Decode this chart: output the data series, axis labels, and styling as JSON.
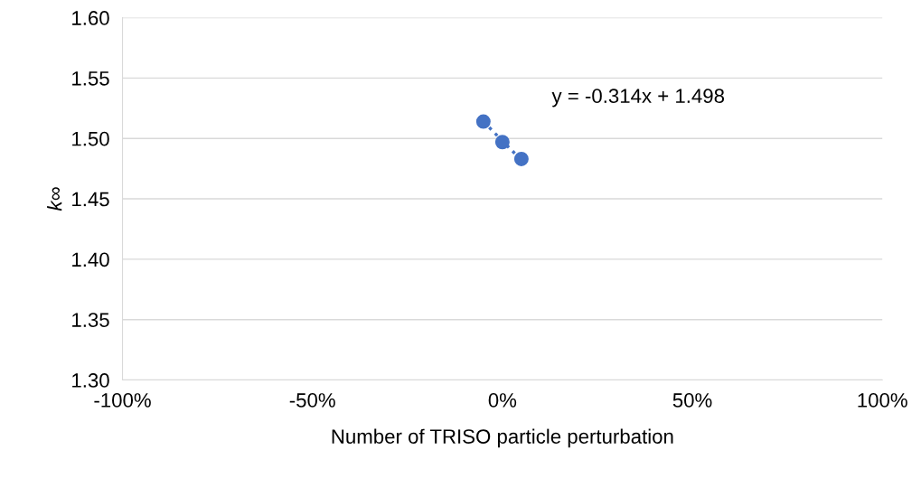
{
  "chart_data": {
    "type": "scatter",
    "xlabel": "Number of TRISO particle perturbation",
    "ylabel": "k∞",
    "xlim": [
      -1,
      1
    ],
    "xticks": [
      {
        "value": -1,
        "label": "-100%"
      },
      {
        "value": -0.5,
        "label": "-50%"
      },
      {
        "value": 0,
        "label": "0%"
      },
      {
        "value": 0.5,
        "label": "50%"
      },
      {
        "value": 1,
        "label": "100%"
      }
    ],
    "ylim": [
      1.3,
      1.6
    ],
    "yticks": [
      {
        "value": 1.3,
        "label": "1.30"
      },
      {
        "value": 1.35,
        "label": "1.35"
      },
      {
        "value": 1.4,
        "label": "1.40"
      },
      {
        "value": 1.45,
        "label": "1.45"
      },
      {
        "value": 1.5,
        "label": "1.50"
      },
      {
        "value": 1.55,
        "label": "1.55"
      },
      {
        "value": 1.6,
        "label": "1.60"
      }
    ],
    "grid": "y",
    "series": [
      {
        "color": "#4472c4",
        "marker": "circle",
        "x": [
          -0.05,
          0,
          0.05
        ],
        "values": [
          1.514,
          1.497,
          1.483
        ]
      },
      {
        "type": "line",
        "color": "#4472c4",
        "line_style": "dotted",
        "marker": "none",
        "x": [
          -0.05,
          0.05
        ],
        "values": [
          1.514,
          1.482
        ]
      }
    ],
    "annotations": [
      "y = -0.314x + 1.498"
    ]
  }
}
